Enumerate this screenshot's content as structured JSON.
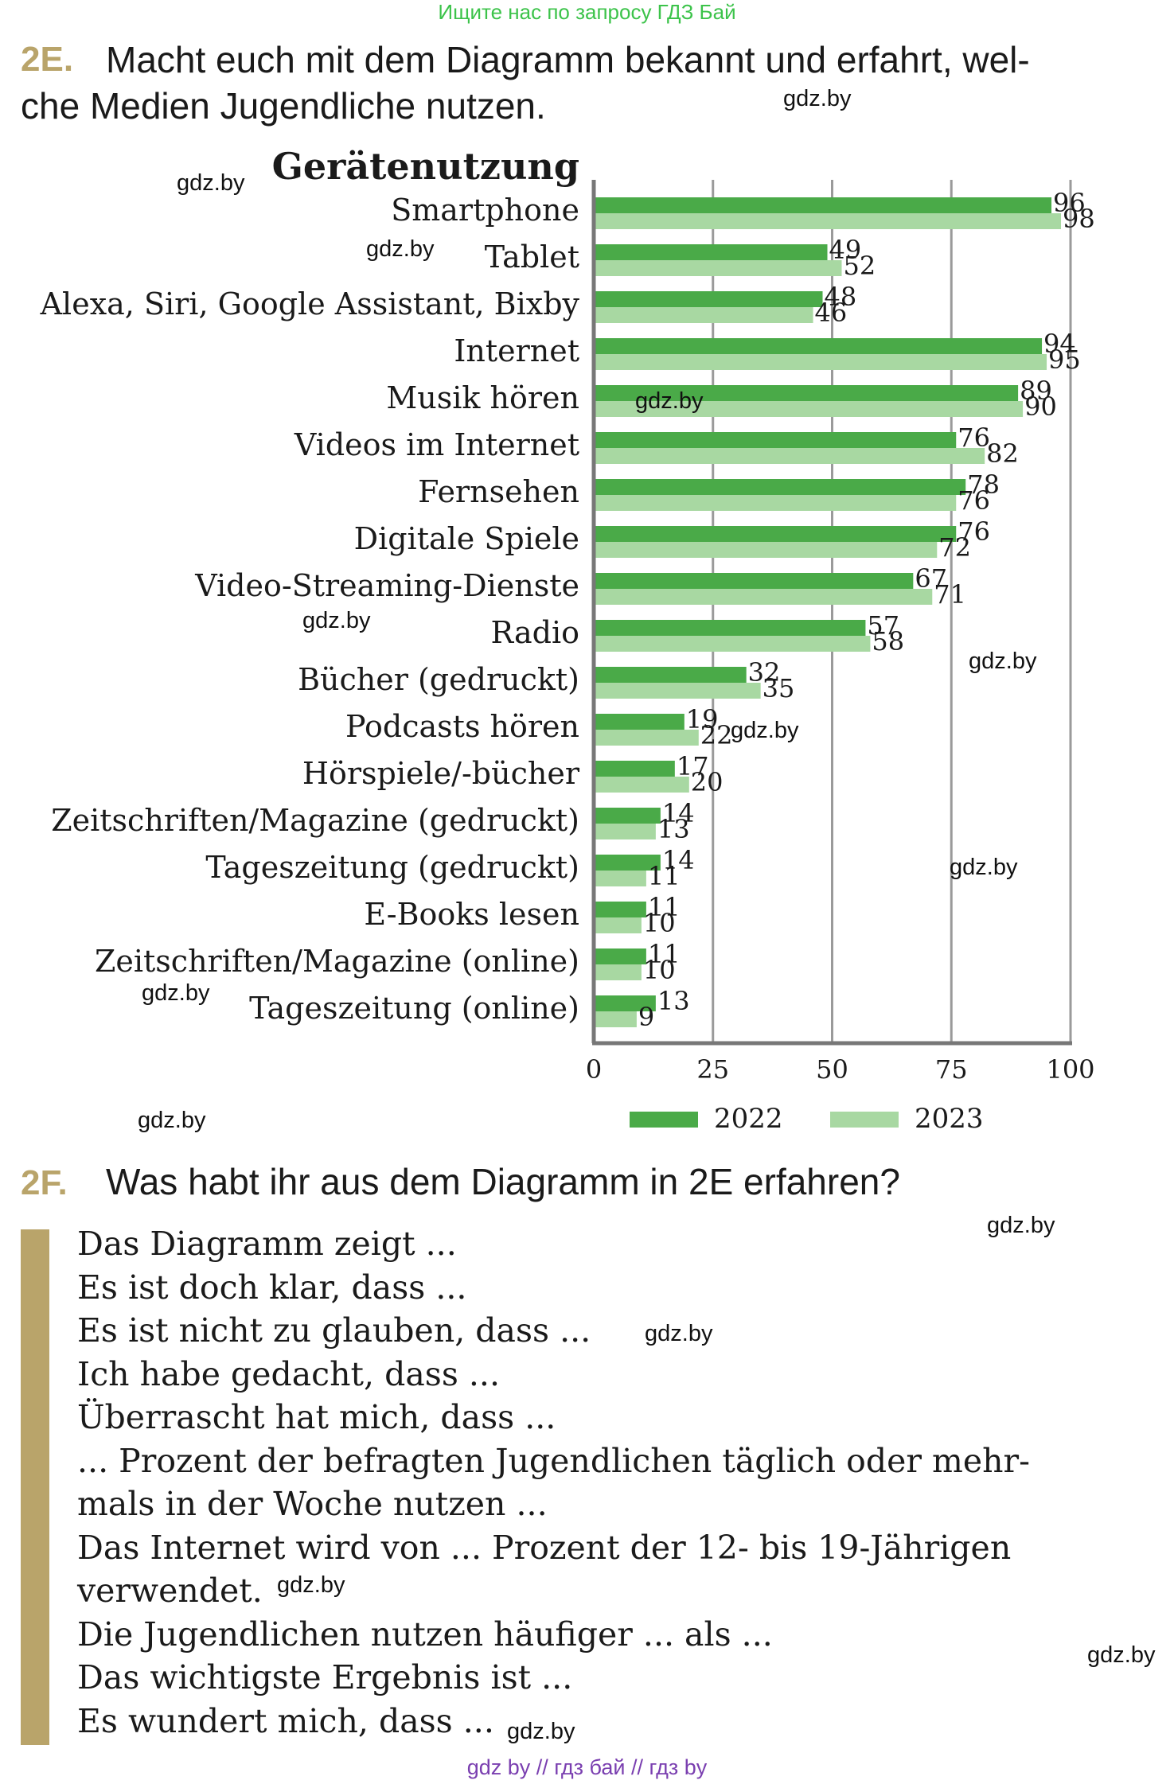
{
  "header": {
    "top_link": "Ищите нас по запросу ГДЗ Бай"
  },
  "task_2e": {
    "number": "2E.",
    "line1": "Macht euch mit dem Diagramm bekannt und erfahrt, wel-",
    "line2": "che Medien Jugendliche nutzen."
  },
  "chart_data": {
    "type": "bar",
    "orientation": "horizontal",
    "title": "Gerätenutzung",
    "categories": [
      "Smartphone",
      "Tablet",
      "Alexa, Siri, Google Assistant, Bixby",
      "Internet",
      "Musik hören",
      "Videos im Internet",
      "Fernsehen",
      "Digitale Spiele",
      "Video-Streaming-Dienste",
      "Radio",
      "Bücher (gedruckt)",
      "Podcasts hören",
      "Hörspiele/-bücher",
      "Zeitschriften/Magazine (gedruckt)",
      "Tageszeitung (gedruckt)",
      "E-Books lesen",
      "Zeitschriften/Magazine (online)",
      "Tageszeitung (online)"
    ],
    "series": [
      {
        "name": "2022",
        "color": "#4aaa48",
        "values": [
          96,
          49,
          48,
          94,
          89,
          76,
          78,
          76,
          67,
          57,
          32,
          19,
          17,
          14,
          14,
          11,
          11,
          13
        ]
      },
      {
        "name": "2023",
        "color": "#a8d8a2",
        "values": [
          98,
          52,
          46,
          95,
          90,
          82,
          76,
          72,
          71,
          58,
          35,
          22,
          20,
          13,
          11,
          10,
          10,
          9
        ]
      }
    ],
    "xlim": [
      0,
      100
    ],
    "xticks": [
      "0",
      "25",
      "50",
      "75",
      "100"
    ],
    "grid": "vertical",
    "legend": "bottom"
  },
  "task_2f": {
    "number": "2F.",
    "text": "Was habt ihr aus dem Diagramm in 2E erfahren?"
  },
  "phrases": [
    "Das Diagramm zeigt ...",
    "Es ist doch klar, dass ...",
    "Es ist nicht zu glauben, dass ...",
    "Ich habe gedacht, dass ...",
    "Überrascht hat mich, dass ...",
    "... Prozent der befragten Jugendlichen täglich oder mehr-",
    "mals in der Woche nutzen ...",
    "Das Internet wird von ... Prozent der 12- bis 19-Jährigen",
    "verwendet.",
    "Die Jugendlichen nutzen häufiger ... als ...",
    "Das wichtigste Ergebnis ist ...",
    "Es wundert mich, dass ..."
  ],
  "watermark": "gdz.by",
  "footer": "gdz by  //  гдз бай  //  гдз by"
}
